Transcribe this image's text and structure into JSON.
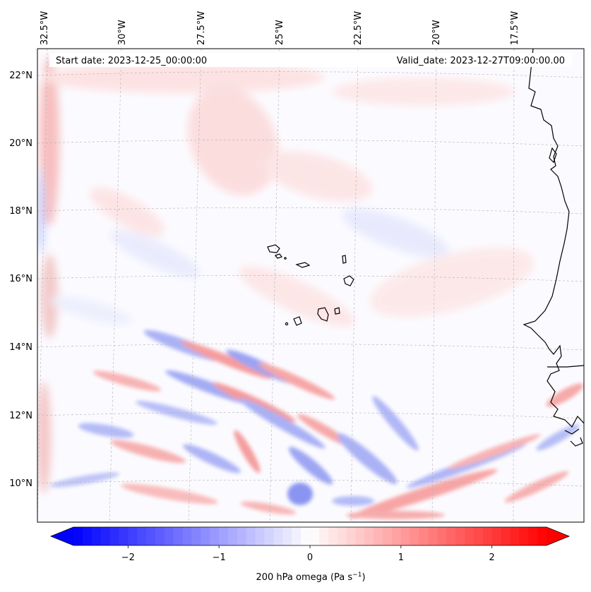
{
  "map": {
    "start_date": "Start date: 2023-12-25_00:00:00",
    "valid_date": "Valid_date: 2023-12-27T09:00:00.00",
    "lon_labels": [
      "32.5°W",
      "30°W",
      "27.5°W",
      "25°W",
      "22.5°W",
      "20°W",
      "17.5°W"
    ],
    "lat_labels": [
      "22°N",
      "20°N",
      "18°N",
      "16°N",
      "14°N",
      "12°N",
      "10°N"
    ],
    "features": [
      "cape-verde-islands",
      "west-africa-coastline"
    ]
  },
  "colorbar": {
    "ticks": [
      "−2",
      "−1",
      "0",
      "1",
      "2"
    ],
    "tick_values": [
      -2,
      -1,
      0,
      1,
      2
    ],
    "range": [
      -2.6,
      2.6
    ],
    "label": "200 hPa omega (Pa s",
    "label_sup": "−1",
    "label_end": ")",
    "colors": {
      "low": "#0000ff",
      "mid": "#ffffff",
      "high": "#ff0000"
    }
  },
  "colors": {
    "coast": "#000000",
    "grid": "#b0b0b0",
    "frame": "#000000"
  }
}
